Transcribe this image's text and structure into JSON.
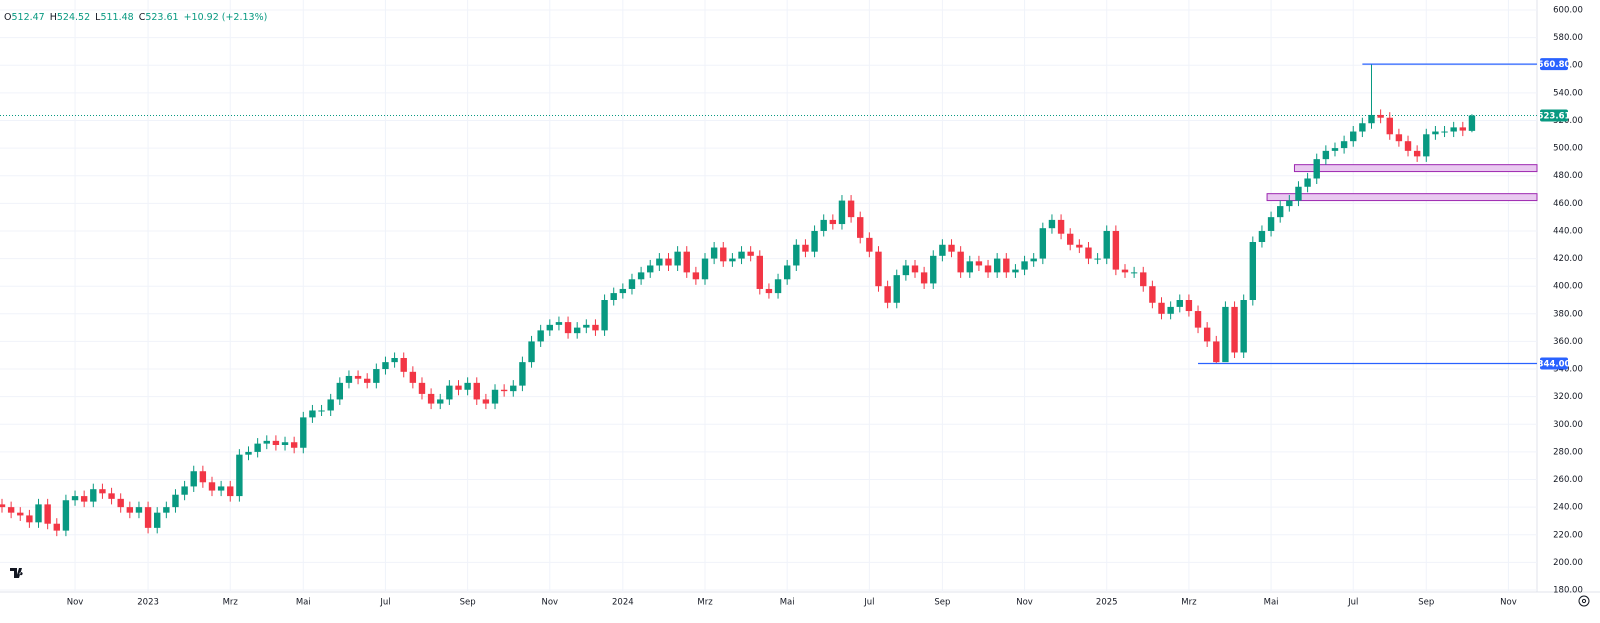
{
  "chart_data": {
    "type": "candlestick",
    "ohlc_header": [
      {
        "key": "O",
        "value": "512.47"
      },
      {
        "key": "H",
        "value": "524.52"
      },
      {
        "key": "L",
        "value": "511.48"
      },
      {
        "key": "C",
        "value": "523.61"
      }
    ],
    "change": "+10.92 (+2.13%)",
    "categories": [
      null,
      null,
      null,
      null,
      null,
      null,
      null,
      null,
      "Nov",
      null,
      null,
      null,
      null,
      null,
      null,
      null,
      "2023",
      null,
      null,
      null,
      null,
      null,
      null,
      null,
      null,
      "Mrz",
      null,
      null,
      null,
      null,
      null,
      null,
      null,
      "Mai",
      null,
      null,
      null,
      null,
      null,
      null,
      null,
      null,
      "Jul",
      null,
      null,
      null,
      null,
      null,
      null,
      null,
      null,
      "Sep",
      null,
      null,
      null,
      null,
      null,
      null,
      null,
      null,
      "Nov",
      null,
      null,
      null,
      null,
      null,
      null,
      null,
      "2024",
      null,
      null,
      null,
      null,
      null,
      null,
      null,
      null,
      "Mrz",
      null,
      null,
      null,
      null,
      null,
      null,
      null,
      null,
      "Mai",
      null,
      null,
      null,
      null,
      null,
      null,
      null,
      null,
      "Jul",
      null,
      null,
      null,
      null,
      null,
      null,
      null,
      "Sep",
      null,
      null,
      null,
      null,
      null,
      null,
      null,
      null,
      "Nov",
      null,
      null,
      null,
      null,
      null,
      null,
      null,
      null,
      "2025",
      null,
      null,
      null,
      null,
      null,
      null,
      null,
      null,
      "Mrz",
      null,
      null,
      null,
      null,
      null,
      null,
      null,
      null,
      "Mai",
      null,
      null,
      null,
      null,
      null,
      null,
      null,
      null,
      "Jul",
      null,
      null,
      null,
      null,
      null,
      null,
      null,
      "Sep",
      null,
      null,
      null,
      null,
      null,
      null,
      null,
      null,
      "Nov"
    ],
    "open": [
      242,
      240,
      236,
      234,
      229,
      242,
      228,
      223,
      245,
      248,
      244,
      253,
      250,
      246,
      240,
      236,
      240,
      225,
      236,
      240,
      249,
      255,
      266,
      258,
      252,
      255,
      248,
      278,
      280,
      286,
      288,
      285,
      287,
      283,
      305,
      310,
      310,
      318,
      330,
      335,
      333,
      330,
      340,
      345,
      348,
      338,
      330,
      322,
      315,
      318,
      328,
      325,
      330,
      318,
      315,
      325,
      324,
      328,
      345,
      360,
      368,
      372,
      374,
      366,
      370,
      372,
      368,
      390,
      395,
      398,
      405,
      410,
      415,
      420,
      415,
      425,
      410,
      405,
      420,
      428,
      418,
      420,
      425,
      422,
      398,
      395,
      405,
      415,
      430,
      425,
      440,
      448,
      445,
      462,
      450,
      435,
      425,
      400,
      388,
      408,
      415,
      410,
      402,
      422,
      430,
      425,
      410,
      418,
      415,
      410,
      420,
      410,
      412,
      418,
      420,
      442,
      448,
      438,
      430,
      428,
      420,
      420,
      440,
      412,
      410,
      410,
      400,
      388,
      380,
      385,
      390,
      382,
      370,
      360,
      345,
      385,
      352,
      390,
      432,
      440,
      450,
      458,
      462,
      472,
      478,
      492,
      498,
      500,
      505,
      512,
      518,
      524,
      522,
      510,
      505,
      498,
      494,
      510,
      512,
      512,
      515,
      512.47,
      null,
      null,
      null,
      null
    ],
    "high": [
      246,
      244,
      240,
      238,
      246,
      246,
      232,
      249,
      252,
      252,
      257,
      257,
      254,
      250,
      244,
      244,
      244,
      240,
      244,
      253,
      259,
      270,
      270,
      262,
      259,
      259,
      282,
      284,
      290,
      292,
      292,
      291,
      291,
      309,
      314,
      314,
      322,
      334,
      339,
      339,
      337,
      344,
      349,
      352,
      352,
      342,
      334,
      326,
      322,
      332,
      332,
      334,
      334,
      322,
      329,
      329,
      332,
      349,
      364,
      372,
      376,
      378,
      378,
      374,
      376,
      376,
      394,
      399,
      402,
      409,
      414,
      419,
      424,
      424,
      429,
      429,
      414,
      424,
      432,
      432,
      424,
      429,
      429,
      426,
      402,
      409,
      419,
      434,
      434,
      444,
      452,
      452,
      466,
      466,
      454,
      439,
      429,
      404,
      412,
      419,
      419,
      414,
      426,
      434,
      434,
      429,
      422,
      422,
      419,
      424,
      424,
      416,
      422,
      424,
      446,
      452,
      452,
      442,
      434,
      432,
      424,
      444,
      444,
      416,
      414,
      414,
      404,
      392,
      389,
      394,
      394,
      386,
      374,
      364,
      389,
      389,
      394,
      436,
      444,
      454,
      462,
      466,
      476,
      482,
      496,
      502,
      504,
      509,
      516,
      522,
      560.8,
      528,
      526,
      514,
      509,
      502,
      514,
      516,
      516,
      519,
      519,
      524.52,
      null,
      null,
      null,
      null
    ],
    "low": [
      236,
      232,
      230,
      225,
      225,
      224,
      219,
      219,
      241,
      240,
      240,
      246,
      242,
      236,
      232,
      232,
      221,
      221,
      232,
      236,
      245,
      251,
      254,
      248,
      248,
      244,
      244,
      274,
      276,
      282,
      281,
      281,
      279,
      279,
      301,
      306,
      306,
      314,
      326,
      329,
      326,
      326,
      336,
      341,
      334,
      326,
      318,
      311,
      311,
      314,
      321,
      321,
      314,
      311,
      311,
      320,
      320,
      324,
      341,
      356,
      364,
      368,
      362,
      362,
      366,
      364,
      364,
      386,
      391,
      394,
      401,
      406,
      411,
      411,
      411,
      406,
      401,
      401,
      416,
      414,
      414,
      416,
      418,
      394,
      391,
      391,
      401,
      411,
      421,
      421,
      436,
      441,
      441,
      446,
      431,
      421,
      396,
      384,
      384,
      404,
      406,
      398,
      398,
      418,
      421,
      406,
      406,
      411,
      406,
      406,
      406,
      406,
      408,
      414,
      416,
      438,
      434,
      426,
      424,
      416,
      416,
      416,
      408,
      406,
      406,
      396,
      384,
      376,
      376,
      381,
      378,
      366,
      356,
      344,
      346,
      348,
      348,
      386,
      428,
      436,
      446,
      454,
      458,
      468,
      474,
      488,
      494,
      496,
      501,
      508,
      514,
      518,
      506,
      501,
      494,
      490,
      490,
      506,
      508,
      508,
      508.69,
      511.48,
      null,
      null,
      null,
      null
    ],
    "close": [
      240,
      236,
      234,
      229,
      242,
      228,
      223,
      245,
      248,
      244,
      253,
      250,
      246,
      240,
      236,
      240,
      225,
      236,
      240,
      249,
      255,
      266,
      258,
      252,
      255,
      248,
      278,
      280,
      286,
      288,
      285,
      287,
      283,
      305,
      310,
      310,
      318,
      330,
      335,
      333,
      330,
      340,
      345,
      348,
      338,
      330,
      322,
      315,
      318,
      328,
      325,
      330,
      318,
      315,
      325,
      324,
      328,
      345,
      360,
      368,
      372,
      374,
      366,
      370,
      372,
      368,
      390,
      395,
      398,
      405,
      410,
      415,
      420,
      415,
      425,
      410,
      405,
      420,
      428,
      418,
      420,
      425,
      422,
      398,
      395,
      405,
      415,
      430,
      425,
      440,
      448,
      445,
      462,
      450,
      435,
      425,
      400,
      388,
      408,
      415,
      410,
      402,
      422,
      430,
      425,
      410,
      418,
      415,
      410,
      420,
      410,
      412,
      418,
      420,
      442,
      448,
      438,
      430,
      428,
      420,
      420,
      440,
      412,
      410,
      410,
      400,
      388,
      380,
      385,
      390,
      382,
      370,
      360,
      345,
      385,
      352,
      390,
      432,
      440,
      450,
      458,
      462,
      472,
      478,
      492,
      498,
      500,
      505,
      512,
      518,
      524,
      522,
      510,
      505,
      498,
      494,
      510,
      512,
      512,
      515,
      512.69,
      523.61,
      null,
      null,
      null,
      null
    ],
    "up_color": "#089981",
    "down_color": "#f23645",
    "ylim": [
      180,
      600
    ],
    "yticks": [
      {
        "value": 180,
        "label": "180.00"
      },
      {
        "value": 200,
        "label": "200.00"
      },
      {
        "value": 220,
        "label": "220.00"
      },
      {
        "value": 240,
        "label": "240.00"
      },
      {
        "value": 260,
        "label": "260.00"
      },
      {
        "value": 280,
        "label": "280.00"
      },
      {
        "value": 300,
        "label": "300.00"
      },
      {
        "value": 320,
        "label": "320.00"
      },
      {
        "value": 340,
        "label": "340.00"
      },
      {
        "value": 360,
        "label": "360.00"
      },
      {
        "value": 380,
        "label": "380.00"
      },
      {
        "value": 400,
        "label": "400.00"
      },
      {
        "value": 420,
        "label": "420.00"
      },
      {
        "value": 440,
        "label": "440.00"
      },
      {
        "value": 460,
        "label": "460.00"
      },
      {
        "value": 480,
        "label": "480.00"
      },
      {
        "value": 500,
        "label": "500.00"
      },
      {
        "value": 520,
        "label": "520.00"
      },
      {
        "value": 540,
        "label": "540.00"
      },
      {
        "value": 560,
        "label": "560.00"
      },
      {
        "value": 580,
        "label": "580.00"
      },
      {
        "value": 600,
        "label": "600.00"
      }
    ],
    "grid": true,
    "price_lines": [
      {
        "value": 560.8,
        "label": "560.80",
        "color": "#2962ff",
        "start": 149
      },
      {
        "value": 344,
        "label": "344.00",
        "color": "#2962ff",
        "start": 131
      }
    ],
    "last_price": {
      "value": 523.61,
      "label": "523.61",
      "color": "#089981"
    },
    "zones": [
      {
        "low": 483,
        "high": 488,
        "start": 142
      },
      {
        "low": 462,
        "high": 467,
        "start": 139
      }
    ],
    "zone_fill": "#e9c9f0",
    "zone_border": "#9c27b0"
  }
}
